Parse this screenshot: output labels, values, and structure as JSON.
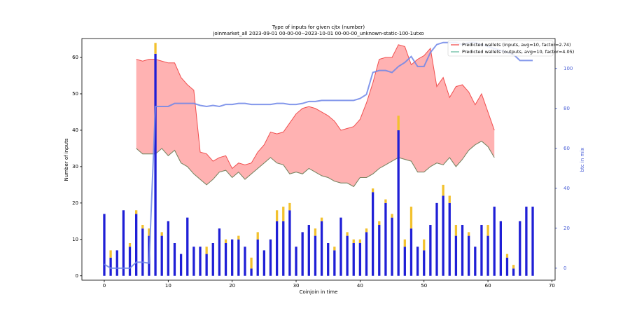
{
  "chart_data": {
    "type": "bar",
    "title": "Type of inputs for given cjtx (number)",
    "subtitle": "joinmarket_all 2023-09-01 00-00-00--2023-10-01 00-00-00_unknown-static-100-1utxo",
    "xlabel": "Coinjoin in time",
    "ylabel": "Number of inputs",
    "y2label": "btc in mix",
    "xlim": [
      -3.5,
      70.5
    ],
    "ylim": [
      -1.2,
      65.2
    ],
    "y2lim": [
      -6,
      115
    ],
    "xticks": [
      0,
      10,
      20,
      30,
      40,
      50,
      60,
      70
    ],
    "yticks": [
      0,
      10,
      20,
      30,
      40,
      50,
      60
    ],
    "y2ticks": [
      0,
      20,
      40,
      60,
      80,
      100
    ],
    "bar_x": [
      0,
      1,
      2,
      3,
      4,
      5,
      6,
      7,
      8,
      9,
      10,
      11,
      12,
      13,
      14,
      15,
      16,
      17,
      18,
      19,
      20,
      21,
      22,
      23,
      24,
      25,
      26,
      27,
      28,
      29,
      30,
      31,
      32,
      33,
      34,
      35,
      36,
      37,
      38,
      39,
      40,
      41,
      42,
      43,
      44,
      45,
      46,
      47,
      48,
      49,
      50,
      51,
      52,
      53,
      54,
      55,
      56,
      57,
      58,
      59,
      60,
      61,
      62,
      63,
      64,
      65,
      66,
      67
    ],
    "bar_series": [
      {
        "color": "#1f1fd6",
        "values": [
          17,
          5,
          7,
          18,
          8,
          17,
          13,
          11,
          61,
          11,
          15,
          9,
          6,
          16,
          8,
          8,
          6,
          9,
          13,
          9,
          10,
          10,
          8,
          2,
          10,
          7,
          10,
          15,
          15,
          18,
          8,
          12,
          14,
          11,
          15,
          9,
          7,
          16,
          11,
          9,
          9,
          12,
          23,
          14,
          20,
          16,
          40,
          8,
          13,
          8,
          7,
          14,
          20,
          22,
          20,
          11,
          14,
          11,
          8,
          14,
          11,
          19,
          15,
          5,
          2,
          15,
          19,
          19
        ]
      },
      {
        "color": "#f2c12e",
        "values": [
          0,
          2,
          0,
          0,
          1,
          1,
          1,
          2,
          3,
          1,
          0,
          0,
          0,
          0,
          0,
          0,
          2,
          0,
          0,
          1,
          0,
          1,
          0,
          3,
          2,
          0,
          0,
          3,
          4,
          2,
          0,
          0,
          0,
          2,
          1,
          0,
          1,
          0,
          1,
          1,
          1,
          1,
          1,
          1,
          1,
          1,
          4,
          2,
          6,
          0,
          3,
          0,
          0,
          3,
          2,
          3,
          0,
          1,
          0,
          0,
          3,
          0,
          0,
          1,
          1,
          0,
          0,
          0
        ]
      }
    ],
    "band_fill": "#ff9f9f",
    "series": [
      {
        "name": "Predicted wallets (inputs, avg=10, factor=2.74)",
        "color": "#f04040",
        "x": [
          5,
          6,
          7,
          8,
          9,
          10,
          11,
          12,
          13,
          14,
          15,
          16,
          17,
          18,
          19,
          20,
          21,
          22,
          23,
          24,
          25,
          26,
          27,
          28,
          29,
          30,
          31,
          32,
          33,
          34,
          35,
          36,
          37,
          38,
          39,
          40,
          41,
          42,
          43,
          44,
          45,
          46,
          47,
          48,
          49,
          50,
          51,
          52,
          53,
          54,
          55,
          56,
          57,
          58,
          59,
          60,
          61
        ],
        "values": [
          59.5,
          59,
          59.5,
          59.5,
          59,
          58.5,
          58.5,
          54.5,
          52.5,
          51,
          34,
          33.5,
          31.5,
          32.5,
          33,
          29.5,
          31,
          30.5,
          31,
          34,
          36,
          39.5,
          39,
          39.5,
          42,
          44.5,
          46,
          46.5,
          46,
          45,
          44,
          42.5,
          40,
          40.5,
          41,
          43,
          47.5,
          53,
          59.5,
          60,
          60,
          63.5,
          63,
          58,
          59.5,
          60.5,
          62.5,
          52,
          54.5,
          49,
          52,
          52.5,
          50.5,
          47,
          50,
          45,
          40
        ]
      },
      {
        "name": "Predicted wallets (outputs, avg=10, factor=4.05)",
        "color": "#5bb89a",
        "x": [
          5,
          6,
          7,
          8,
          9,
          10,
          11,
          12,
          13,
          14,
          15,
          16,
          17,
          18,
          19,
          20,
          21,
          22,
          23,
          24,
          25,
          26,
          27,
          28,
          29,
          30,
          31,
          32,
          33,
          34,
          35,
          36,
          37,
          38,
          39,
          40,
          41,
          42,
          43,
          44,
          45,
          46,
          47,
          48,
          49,
          50,
          51,
          52,
          53,
          54,
          55,
          56,
          57,
          58,
          59,
          60,
          61
        ],
        "values": [
          35,
          33.5,
          33.5,
          33.5,
          35,
          33,
          34.5,
          31,
          30,
          28,
          26.5,
          25,
          26.5,
          28.5,
          29,
          27,
          28.5,
          26.5,
          28,
          29.5,
          31,
          32.5,
          31,
          30.5,
          28,
          28.5,
          28,
          29.5,
          28.5,
          27.5,
          27,
          26,
          25.5,
          25.5,
          24.5,
          27,
          27,
          28,
          29.5,
          30.5,
          31.5,
          32.5,
          32,
          31.5,
          28.5,
          28.5,
          30,
          31,
          30.5,
          32.5,
          30,
          32,
          34.5,
          36,
          37,
          35.5,
          32.5
        ]
      }
    ],
    "y2_series": {
      "color": "#6f86e8",
      "axis": "y2",
      "x": [
        0,
        1,
        2,
        3,
        4,
        5,
        6,
        7,
        8,
        9,
        10,
        11,
        12,
        13,
        14,
        15,
        16,
        17,
        18,
        19,
        20,
        21,
        22,
        23,
        24,
        25,
        26,
        27,
        28,
        29,
        30,
        31,
        32,
        33,
        34,
        35,
        36,
        37,
        38,
        39,
        40,
        41,
        42,
        43,
        44,
        45,
        46,
        47,
        48,
        49,
        50,
        51,
        52,
        53,
        54,
        55,
        56,
        57,
        58,
        59,
        60,
        61,
        62,
        63,
        64,
        65,
        66,
        67
      ],
      "values": [
        2,
        0,
        0,
        0,
        0,
        3,
        3,
        2.5,
        81,
        81,
        81,
        82.5,
        82.5,
        82.5,
        82.5,
        81.5,
        81,
        81.5,
        81,
        82,
        82,
        82.5,
        82.5,
        82,
        82,
        82,
        82,
        82.5,
        82.5,
        82,
        82,
        82.5,
        83.5,
        83.5,
        84,
        84,
        84,
        84,
        84,
        84,
        85,
        87,
        98,
        99,
        99,
        98,
        101,
        103,
        106,
        101,
        101,
        108,
        112,
        113,
        113,
        113,
        112,
        113,
        113,
        112,
        111,
        110,
        109,
        108,
        107,
        104,
        104,
        104
      ]
    },
    "legend": "upper right"
  }
}
